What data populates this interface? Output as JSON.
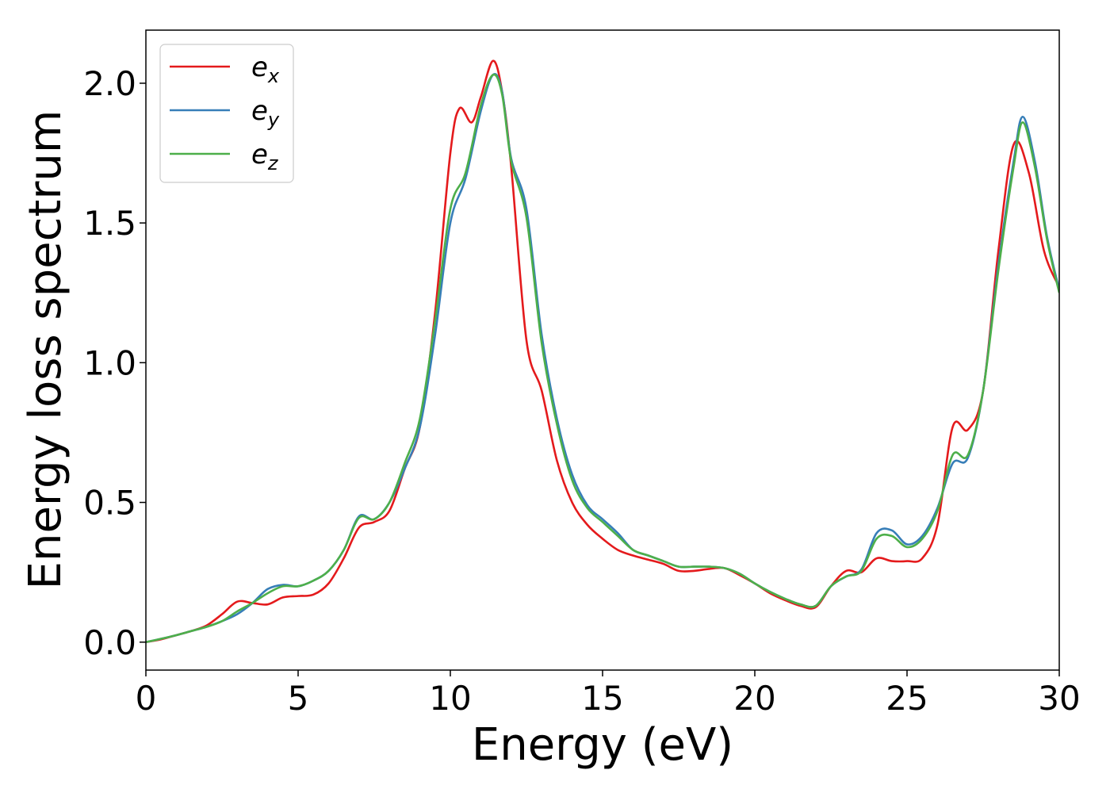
{
  "chart_data": {
    "type": "line",
    "title": "",
    "xlabel": "Energy (eV)",
    "ylabel": "Energy loss spectrum",
    "xlim": [
      0,
      30
    ],
    "ylim": [
      -0.1,
      2.19
    ],
    "xticks": [
      0,
      5,
      10,
      15,
      20,
      25,
      30
    ],
    "xtick_labels": [
      "0",
      "5",
      "10",
      "15",
      "20",
      "25",
      "30"
    ],
    "yticks": [
      0.0,
      0.5,
      1.0,
      1.5,
      2.0
    ],
    "ytick_labels": [
      "0.0",
      "0.5",
      "1.0",
      "1.5",
      "2.0"
    ],
    "grid": false,
    "legend_position": "top-left",
    "series": [
      {
        "name": "e_x",
        "legend_base": "e",
        "legend_sub": "x",
        "color": "#e41a1c",
        "points": [
          [
            0,
            0
          ],
          [
            0.5,
            0.01
          ],
          [
            1,
            0.025
          ],
          [
            1.5,
            0.04
          ],
          [
            2,
            0.06
          ],
          [
            2.5,
            0.1
          ],
          [
            3,
            0.145
          ],
          [
            3.5,
            0.14
          ],
          [
            4,
            0.135
          ],
          [
            4.5,
            0.16
          ],
          [
            5,
            0.165
          ],
          [
            5.5,
            0.17
          ],
          [
            6,
            0.21
          ],
          [
            6.5,
            0.3
          ],
          [
            7,
            0.41
          ],
          [
            7.5,
            0.43
          ],
          [
            8,
            0.47
          ],
          [
            8.5,
            0.62
          ],
          [
            9,
            0.77
          ],
          [
            9.5,
            1.18
          ],
          [
            10,
            1.75
          ],
          [
            10.3,
            1.91
          ],
          [
            10.7,
            1.86
          ],
          [
            11,
            1.95
          ],
          [
            11.4,
            2.08
          ],
          [
            11.7,
            1.97
          ],
          [
            12,
            1.7
          ],
          [
            12.5,
            1.08
          ],
          [
            13,
            0.9
          ],
          [
            13.5,
            0.65
          ],
          [
            14,
            0.5
          ],
          [
            14.5,
            0.42
          ],
          [
            15,
            0.37
          ],
          [
            15.5,
            0.33
          ],
          [
            16,
            0.31
          ],
          [
            16.5,
            0.295
          ],
          [
            17,
            0.28
          ],
          [
            17.5,
            0.255
          ],
          [
            18,
            0.255
          ],
          [
            18.5,
            0.262
          ],
          [
            19,
            0.265
          ],
          [
            19.5,
            0.24
          ],
          [
            20,
            0.21
          ],
          [
            20.5,
            0.175
          ],
          [
            21,
            0.15
          ],
          [
            21.5,
            0.13
          ],
          [
            22,
            0.125
          ],
          [
            22.5,
            0.2
          ],
          [
            23,
            0.255
          ],
          [
            23.5,
            0.25
          ],
          [
            24,
            0.3
          ],
          [
            24.5,
            0.29
          ],
          [
            25,
            0.29
          ],
          [
            25.5,
            0.3
          ],
          [
            26,
            0.42
          ],
          [
            26.5,
            0.77
          ],
          [
            27,
            0.76
          ],
          [
            27.5,
            0.9
          ],
          [
            28,
            1.4
          ],
          [
            28.5,
            1.78
          ],
          [
            29,
            1.68
          ],
          [
            29.5,
            1.4
          ],
          [
            30,
            1.27
          ]
        ]
      },
      {
        "name": "e_y",
        "legend_base": "e",
        "legend_sub": "y",
        "color": "#377eb8",
        "points": [
          [
            0,
            0
          ],
          [
            0.5,
            0.012
          ],
          [
            1,
            0.025
          ],
          [
            1.5,
            0.04
          ],
          [
            2,
            0.055
          ],
          [
            2.5,
            0.075
          ],
          [
            3,
            0.1
          ],
          [
            3.5,
            0.14
          ],
          [
            4,
            0.19
          ],
          [
            4.5,
            0.205
          ],
          [
            5,
            0.2
          ],
          [
            5.5,
            0.22
          ],
          [
            6,
            0.255
          ],
          [
            6.5,
            0.33
          ],
          [
            7,
            0.45
          ],
          [
            7.5,
            0.44
          ],
          [
            8,
            0.5
          ],
          [
            8.5,
            0.62
          ],
          [
            9,
            0.77
          ],
          [
            9.5,
            1.1
          ],
          [
            10,
            1.5
          ],
          [
            10.5,
            1.66
          ],
          [
            11,
            1.9
          ],
          [
            11.4,
            2.03
          ],
          [
            11.7,
            1.97
          ],
          [
            12,
            1.73
          ],
          [
            12.5,
            1.55
          ],
          [
            13,
            1.1
          ],
          [
            13.5,
            0.8
          ],
          [
            14,
            0.6
          ],
          [
            14.5,
            0.49
          ],
          [
            15,
            0.44
          ],
          [
            15.5,
            0.39
          ],
          [
            16,
            0.33
          ],
          [
            16.5,
            0.31
          ],
          [
            17,
            0.29
          ],
          [
            17.5,
            0.27
          ],
          [
            18,
            0.27
          ],
          [
            18.5,
            0.27
          ],
          [
            19,
            0.265
          ],
          [
            19.5,
            0.245
          ],
          [
            20,
            0.21
          ],
          [
            20.5,
            0.18
          ],
          [
            21,
            0.155
          ],
          [
            21.5,
            0.135
          ],
          [
            22,
            0.13
          ],
          [
            22.5,
            0.2
          ],
          [
            23,
            0.235
          ],
          [
            23.5,
            0.26
          ],
          [
            24,
            0.39
          ],
          [
            24.5,
            0.4
          ],
          [
            25,
            0.35
          ],
          [
            25.5,
            0.38
          ],
          [
            26,
            0.48
          ],
          [
            26.5,
            0.64
          ],
          [
            27,
            0.66
          ],
          [
            27.5,
            0.9
          ],
          [
            28,
            1.35
          ],
          [
            28.5,
            1.72
          ],
          [
            28.8,
            1.88
          ],
          [
            29.2,
            1.72
          ],
          [
            29.6,
            1.45
          ],
          [
            30,
            1.26
          ]
        ]
      },
      {
        "name": "e_z",
        "legend_base": "e",
        "legend_sub": "z",
        "color": "#4daf4a",
        "points": [
          [
            0,
            0
          ],
          [
            0.5,
            0.012
          ],
          [
            1,
            0.025
          ],
          [
            1.5,
            0.04
          ],
          [
            2,
            0.055
          ],
          [
            2.5,
            0.075
          ],
          [
            3,
            0.11
          ],
          [
            3.5,
            0.14
          ],
          [
            4,
            0.175
          ],
          [
            4.5,
            0.2
          ],
          [
            5,
            0.2
          ],
          [
            5.5,
            0.22
          ],
          [
            6,
            0.255
          ],
          [
            6.5,
            0.33
          ],
          [
            7,
            0.445
          ],
          [
            7.5,
            0.44
          ],
          [
            8,
            0.5
          ],
          [
            8.5,
            0.64
          ],
          [
            9,
            0.8
          ],
          [
            9.5,
            1.15
          ],
          [
            10,
            1.55
          ],
          [
            10.5,
            1.68
          ],
          [
            11,
            1.92
          ],
          [
            11.4,
            2.03
          ],
          [
            11.7,
            1.96
          ],
          [
            12,
            1.72
          ],
          [
            12.5,
            1.52
          ],
          [
            13,
            1.07
          ],
          [
            13.5,
            0.78
          ],
          [
            14,
            0.58
          ],
          [
            14.5,
            0.48
          ],
          [
            15,
            0.43
          ],
          [
            15.5,
            0.38
          ],
          [
            16,
            0.33
          ],
          [
            16.5,
            0.31
          ],
          [
            17,
            0.29
          ],
          [
            17.5,
            0.27
          ],
          [
            18,
            0.27
          ],
          [
            18.5,
            0.27
          ],
          [
            19,
            0.265
          ],
          [
            19.5,
            0.245
          ],
          [
            20,
            0.21
          ],
          [
            20.5,
            0.18
          ],
          [
            21,
            0.155
          ],
          [
            21.5,
            0.135
          ],
          [
            22,
            0.13
          ],
          [
            22.5,
            0.2
          ],
          [
            23,
            0.235
          ],
          [
            23.5,
            0.255
          ],
          [
            24,
            0.37
          ],
          [
            24.5,
            0.38
          ],
          [
            25,
            0.34
          ],
          [
            25.5,
            0.37
          ],
          [
            26,
            0.47
          ],
          [
            26.5,
            0.67
          ],
          [
            27,
            0.67
          ],
          [
            27.5,
            0.9
          ],
          [
            28,
            1.33
          ],
          [
            28.5,
            1.7
          ],
          [
            28.8,
            1.86
          ],
          [
            29.2,
            1.7
          ],
          [
            29.6,
            1.44
          ],
          [
            30,
            1.25
          ]
        ]
      }
    ]
  }
}
